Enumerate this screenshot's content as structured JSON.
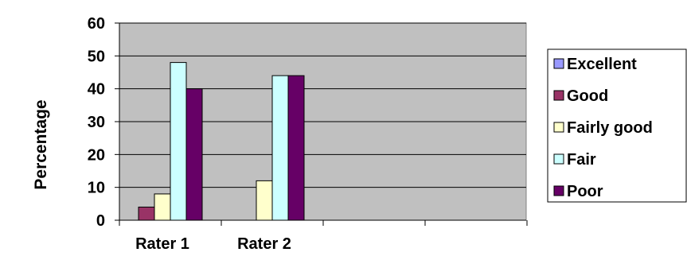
{
  "chart_data": {
    "type": "bar",
    "title": "",
    "xlabel": "",
    "ylabel": "Percentage",
    "ylim": [
      0,
      60
    ],
    "yticks": [
      0,
      10,
      20,
      30,
      40,
      50,
      60
    ],
    "grid": true,
    "legend_position": "right",
    "plot_background": "#c0c0c0",
    "categories": [
      "Rater 1",
      "Rater 2",
      "",
      "",
      ""
    ],
    "series": [
      {
        "name": "Excellent",
        "color": "#9999ff",
        "values": [
          0,
          0,
          null,
          null,
          null
        ]
      },
      {
        "name": "Good",
        "color": "#993366",
        "values": [
          4,
          0,
          null,
          null,
          null
        ]
      },
      {
        "name": "Fairly good",
        "color": "#ffffcc",
        "values": [
          8,
          12,
          null,
          null,
          null
        ]
      },
      {
        "name": "Fair",
        "color": "#ccffff",
        "values": [
          48,
          44,
          null,
          null,
          null
        ]
      },
      {
        "name": "Poor",
        "color": "#660066",
        "values": [
          40,
          44,
          null,
          null,
          null
        ]
      }
    ]
  }
}
